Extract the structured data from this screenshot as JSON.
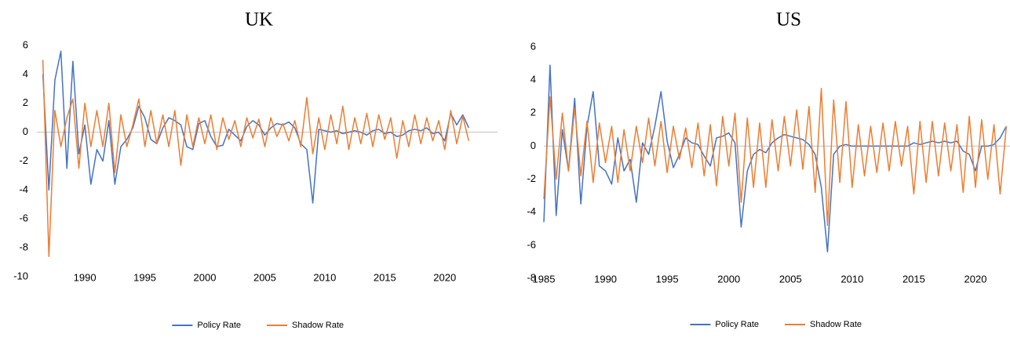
{
  "chart_data": [
    {
      "type": "line",
      "title": "UK",
      "x": [
        1986.5,
        1987,
        1987.5,
        1988,
        1988.5,
        1989,
        1989.5,
        1990,
        1990.5,
        1991,
        1991.5,
        1992,
        1992.5,
        1993,
        1993.5,
        1994,
        1994.5,
        1995,
        1995.5,
        1996,
        1996.5,
        1997,
        1997.5,
        1998,
        1998.5,
        1999,
        1999.5,
        2000,
        2000.5,
        2001,
        2001.5,
        2002,
        2002.5,
        2003,
        2003.5,
        2004,
        2004.5,
        2005,
        2005.5,
        2006,
        2006.5,
        2007,
        2007.5,
        2008,
        2008.5,
        2009,
        2009.5,
        2010,
        2010.5,
        2011,
        2011.5,
        2012,
        2012.5,
        2013,
        2013.5,
        2014,
        2014.5,
        2015,
        2015.5,
        2016,
        2016.5,
        2017,
        2017.5,
        2018,
        2018.5,
        2019,
        2019.5,
        2020,
        2020.5,
        2021,
        2021.5,
        2022
      ],
      "series": [
        {
          "name": "Policy Rate",
          "color": "#4472c4",
          "values": [
            4,
            -4,
            3.6,
            5.6,
            -2.5,
            4.9,
            -1.5,
            0.5,
            -3.6,
            -1.2,
            -2,
            0.8,
            -3.6,
            -1,
            -0.5,
            0.3,
            1.8,
            1,
            -0.5,
            -0.8,
            0.3,
            1,
            0.8,
            0.5,
            -1,
            -1.2,
            0.6,
            0.8,
            -0.3,
            -1,
            -0.9,
            0.2,
            -0.2,
            -0.6,
            0.4,
            0.8,
            0.5,
            -0.2,
            0.3,
            0.6,
            0.5,
            0.7,
            0.3,
            -0.8,
            -1.2,
            -4.9,
            0.2,
            0.1,
            0,
            0.1,
            -0.1,
            0,
            0.1,
            0,
            -0.2,
            0.1,
            0.2,
            -0.1,
            0,
            -0.3,
            -0.2,
            0.1,
            0.2,
            0.1,
            0.3,
            -0.1,
            0,
            -0.6,
            1.3,
            0.5,
            1.2,
            0.3
          ]
        },
        {
          "name": "Shadow Rate",
          "color": "#ed7d31",
          "values": [
            5,
            -8.6,
            1.5,
            -1,
            1,
            2.3,
            -2.5,
            2,
            -1,
            1.5,
            -1,
            2,
            -2.8,
            1.2,
            -1,
            0.5,
            2.3,
            -1,
            1.5,
            -0.8,
            1.2,
            -1,
            1.5,
            -2.3,
            1.2,
            -1,
            1,
            -0.8,
            1.2,
            -1.2,
            1,
            -0.5,
            0.8,
            -1,
            1,
            -0.4,
            0.9,
            -1,
            1,
            -0.3,
            0.6,
            -0.6,
            0.8,
            -1,
            2.4,
            -1.5,
            1,
            -1.2,
            1.2,
            -0.8,
            1.8,
            -1.2,
            1,
            -0.8,
            1.3,
            -1,
            1.2,
            -0.5,
            1,
            -1.8,
            0.8,
            -1,
            1.2,
            -0.8,
            1,
            -0.6,
            0.8,
            -1.2,
            1.5,
            -0.8,
            1.1,
            -0.6
          ]
        }
      ],
      "xlim": [
        1986,
        2024.4
      ],
      "xticks": [
        1990,
        1995,
        2000,
        2005,
        2010,
        2015,
        2020
      ],
      "ylim": [
        -10,
        6
      ],
      "yticks": [
        6,
        4,
        2,
        0,
        -2,
        -4,
        -6,
        -8,
        -10
      ],
      "grid": false,
      "legend": "bottom"
    },
    {
      "type": "line",
      "title": "US",
      "x": [
        1985,
        1985.5,
        1986,
        1986.5,
        1987,
        1987.5,
        1988,
        1988.5,
        1989,
        1989.5,
        1990,
        1990.5,
        1991,
        1991.5,
        1992,
        1992.5,
        1993,
        1993.5,
        1994,
        1994.5,
        1995,
        1995.5,
        1996,
        1996.5,
        1997,
        1997.5,
        1998,
        1998.5,
        1999,
        1999.5,
        2000,
        2000.5,
        2001,
        2001.5,
        2002,
        2002.5,
        2003,
        2003.5,
        2004,
        2004.5,
        2005,
        2005.5,
        2006,
        2006.5,
        2007,
        2007.5,
        2008,
        2008.5,
        2009,
        2009.5,
        2010,
        2010.5,
        2011,
        2011.5,
        2012,
        2012.5,
        2013,
        2013.5,
        2014,
        2014.5,
        2015,
        2015.5,
        2016,
        2016.5,
        2017,
        2017.5,
        2018,
        2018.5,
        2019,
        2019.5,
        2020,
        2020.5,
        2021,
        2021.5,
        2022,
        2022.5
      ],
      "series": [
        {
          "name": "Policy Rate",
          "color": "#4472c4",
          "values": [
            -4.6,
            4.9,
            -4.2,
            1,
            -1.5,
            2.9,
            -3.5,
            1.2,
            3.3,
            -1.2,
            -1.5,
            -2.3,
            0.5,
            -1.5,
            -0.8,
            -3.4,
            0.2,
            -0.5,
            1.2,
            3.3,
            0.3,
            -1.3,
            -0.5,
            0.5,
            0.2,
            0.1,
            -0.6,
            -1.2,
            0.5,
            0.6,
            0.8,
            0.2,
            -4.9,
            -1.5,
            -0.5,
            -0.2,
            -0.4,
            0.2,
            0.5,
            0.7,
            0.6,
            0.5,
            0.4,
            0.1,
            -0.5,
            -2.5,
            -6.4,
            -0.5,
            0,
            0.1,
            0,
            0,
            0,
            0,
            0,
            0,
            0,
            0,
            0,
            0,
            0.2,
            0.1,
            0.2,
            0.3,
            0.2,
            0.3,
            0.2,
            0.3,
            -0.3,
            -0.5,
            -1.5,
            0,
            0,
            0.1,
            0.5,
            1.2
          ]
        },
        {
          "name": "Shadow Rate",
          "color": "#ed7d31",
          "values": [
            -3.2,
            3,
            -2,
            2,
            -1.5,
            2.3,
            -1.8,
            1.5,
            -2.2,
            1.4,
            -1,
            1.2,
            -2.2,
            1,
            -1.5,
            1.2,
            -1,
            1.7,
            -1.2,
            1.5,
            -1.6,
            1.2,
            -0.8,
            1.1,
            -1.3,
            1.4,
            -1.8,
            1.3,
            -2.4,
            1.8,
            -1.2,
            2,
            -3.4,
            1.7,
            -2.5,
            1.4,
            -2.5,
            1.6,
            -1.5,
            1.8,
            -1.2,
            2.2,
            -1.4,
            2.4,
            -2.8,
            3.5,
            -4.8,
            2.8,
            -2.2,
            2.7,
            -2.5,
            1.3,
            -1.8,
            1.2,
            -1.6,
            1.4,
            -1.5,
            1.5,
            -1.2,
            1.2,
            -2.9,
            1.5,
            -2.2,
            1.5,
            -1.8,
            1.4,
            -1.5,
            1.3,
            -2.8,
            1.8,
            -2.5,
            1.6,
            -2,
            1.3,
            -2.9,
            1.2
          ]
        }
      ],
      "xlim": [
        1985,
        2022.8
      ],
      "xticks": [
        1985,
        1990,
        1995,
        2000,
        2005,
        2010,
        2015,
        2020
      ],
      "ylim": [
        -8,
        6
      ],
      "yticks": [
        6,
        4,
        2,
        0,
        -2,
        -4,
        -6,
        -8
      ],
      "grid": false,
      "legend": "bottom"
    }
  ]
}
